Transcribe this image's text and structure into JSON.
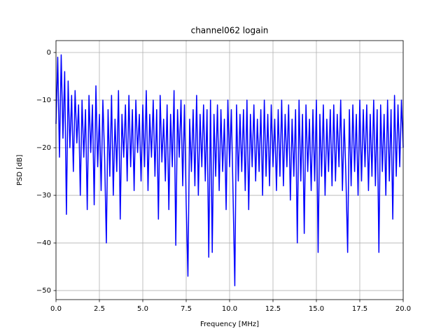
{
  "chart_data": {
    "type": "line",
    "title": "channel062 logain",
    "x_label": "Frequency [MHz]",
    "y_label": "PSD [dB]",
    "x": [
      0,
      0.1,
      0.2,
      0.3,
      0.4,
      0.5,
      0.6,
      0.7,
      0.8,
      0.9,
      1,
      1.1,
      1.2,
      1.3,
      1.4,
      1.5,
      1.6,
      1.7,
      1.8,
      1.9,
      2,
      2.1,
      2.2,
      2.3,
      2.4,
      2.5,
      2.6,
      2.7,
      2.8,
      2.9,
      3,
      3.1,
      3.2,
      3.3,
      3.4,
      3.5,
      3.6,
      3.7,
      3.8,
      3.9,
      4,
      4.1,
      4.2,
      4.3,
      4.4,
      4.5,
      4.6,
      4.7,
      4.8,
      4.9,
      5,
      5.1,
      5.2,
      5.3,
      5.4,
      5.5,
      5.6,
      5.7,
      5.8,
      5.9,
      6,
      6.1,
      6.2,
      6.3,
      6.4,
      6.5,
      6.6,
      6.7,
      6.8,
      6.9,
      7,
      7.1,
      7.2,
      7.3,
      7.4,
      7.5,
      7.6,
      7.7,
      7.8,
      7.9,
      8,
      8.1,
      8.2,
      8.3,
      8.4,
      8.5,
      8.6,
      8.7,
      8.8,
      8.9,
      9,
      9.1,
      9.2,
      9.3,
      9.4,
      9.5,
      9.6,
      9.7,
      9.8,
      9.9,
      10,
      10.1,
      10.2,
      10.3,
      10.4,
      10.5,
      10.6,
      10.7,
      10.8,
      10.9,
      11,
      11.1,
      11.2,
      11.3,
      11.4,
      11.5,
      11.6,
      11.7,
      11.8,
      11.9,
      12,
      12.1,
      12.2,
      12.3,
      12.4,
      12.5,
      12.6,
      12.7,
      12.8,
      12.9,
      13,
      13.1,
      13.2,
      13.3,
      13.4,
      13.5,
      13.6,
      13.7,
      13.8,
      13.9,
      14,
      14.1,
      14.2,
      14.3,
      14.4,
      14.5,
      14.6,
      14.7,
      14.8,
      14.9,
      15,
      15.1,
      15.2,
      15.3,
      15.4,
      15.5,
      15.6,
      15.7,
      15.8,
      15.9,
      16,
      16.1,
      16.2,
      16.3,
      16.4,
      16.5,
      16.6,
      16.7,
      16.8,
      16.9,
      17,
      17.1,
      17.2,
      17.3,
      17.4,
      17.5,
      17.6,
      17.7,
      17.8,
      17.9,
      18,
      18.1,
      18.2,
      18.3,
      18.4,
      18.5,
      18.6,
      18.7,
      18.8,
      18.9,
      19,
      19.1,
      19.2,
      19.3,
      19.4,
      19.5,
      19.6,
      19.7,
      19.8,
      19.9,
      20
    ],
    "values": [
      -15,
      -1,
      -22,
      -0.5,
      -18,
      -4,
      -34,
      -6,
      -20,
      -9,
      -25,
      -8,
      -19,
      -11,
      -30,
      -10,
      -22,
      -12,
      -33,
      -9,
      -21,
      -11,
      -32,
      -7,
      -24,
      -13,
      -29,
      -10,
      -22,
      -40,
      -12,
      -26,
      -9,
      -30,
      -14,
      -25,
      -8,
      -35,
      -13,
      -22,
      -11,
      -27,
      -9,
      -24,
      -12,
      -29,
      -10,
      -21,
      -13,
      -27,
      -11,
      -24,
      -8,
      -29,
      -13,
      -22,
      -10,
      -26,
      -12,
      -35,
      -9,
      -23,
      -14,
      -27,
      -11,
      -33,
      -13,
      -24,
      -8,
      -40.5,
      -12,
      -22,
      -10,
      -28,
      -11,
      -32,
      -47,
      -14,
      -25,
      -12,
      -28,
      -9,
      -30,
      -13,
      -24,
      -11,
      -27,
      -12,
      -43,
      -10,
      -42,
      -13,
      -26,
      -11,
      -29,
      -12,
      -25,
      -14,
      -33,
      -10,
      -24,
      -12,
      -30,
      -49,
      -11,
      -27,
      -13,
      -25,
      -12,
      -29,
      -10,
      -33,
      -13,
      -24,
      -11,
      -27,
      -14,
      -25,
      -12,
      -30,
      -10,
      -26,
      -13,
      -28,
      -11,
      -24,
      -14,
      -29,
      -12,
      -26,
      -10,
      -28,
      -13,
      -24,
      -11,
      -31,
      -14,
      -26,
      -12,
      -40,
      -10,
      -27,
      -13,
      -38,
      -11,
      -25,
      -14,
      -29,
      -12,
      -27,
      -10,
      -42,
      -13,
      -26,
      -11,
      -30,
      -14,
      -25,
      -12,
      -28,
      -11,
      -27,
      -13,
      -24,
      -10,
      -29,
      -14,
      -26,
      -42,
      -12,
      -28,
      -11,
      -25,
      -13,
      -30,
      -10,
      -27,
      -12,
      -24,
      -11,
      -29,
      -13,
      -26,
      -10,
      -28,
      -12,
      -42,
      -11,
      -25,
      -13,
      -30,
      -10,
      -27,
      -12,
      -35,
      -9,
      -26,
      -11,
      -24,
      -10,
      -20
    ],
    "color": "#0000ff",
    "xlim": [
      0,
      20
    ],
    "ylim": [
      -51.9,
      2.5
    ],
    "xticks": [
      {
        "value": 0,
        "label": "0.0"
      },
      2.5,
      {
        "value": 5,
        "label": "5.0"
      },
      7.5,
      {
        "value": 10,
        "label": "10.0"
      },
      12.5,
      {
        "value": 15,
        "label": "15.0"
      },
      17.5,
      {
        "value": 20,
        "label": "20.0"
      }
    ],
    "yticks": [
      {
        "value": 0,
        "label": "0"
      },
      {
        "value": -10,
        "label": "−10"
      },
      {
        "value": -20,
        "label": "−20"
      },
      {
        "value": -30,
        "label": "−30"
      },
      {
        "value": -40,
        "label": "−40"
      },
      {
        "value": -50,
        "label": "−50"
      }
    ],
    "grid": true
  }
}
